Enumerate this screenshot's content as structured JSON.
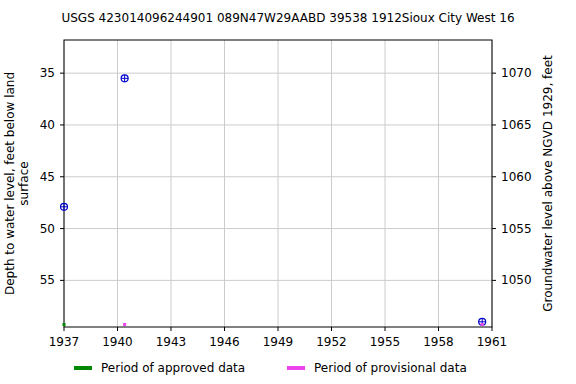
{
  "chart_data": {
    "type": "scatter",
    "title": "USGS 423014096244901 089N47W29AABD 39538 1912Sioux City West 16",
    "x_label": null,
    "y_label": "Depth to water level, feet below land surface",
    "y2_label": "Groundwater level above NGVD 1929, feet",
    "xlim": [
      1937,
      1961
    ],
    "xticks": [
      1937,
      1940,
      1943,
      1946,
      1949,
      1952,
      1955,
      1958,
      1961
    ],
    "ylim": [
      59.5,
      31.8
    ],
    "yticks": [
      35,
      40,
      45,
      50,
      55
    ],
    "y2lim": [
      1045.5,
      1073.2
    ],
    "y2ticks": [
      1050,
      1055,
      1060,
      1065,
      1070
    ],
    "grid": true,
    "legend": "bottom",
    "series": [
      {
        "type": "scatter",
        "color": "#0000cc",
        "marker": "circle",
        "x": [
          1937.0,
          1940.4,
          1960.45
        ],
        "values": [
          47.9,
          35.5,
          59.0
        ]
      },
      {
        "name": "Period of approved data",
        "type": "period",
        "color": "#008800",
        "x": [
          1937.0
        ]
      },
      {
        "name": "Period of provisional data",
        "type": "period",
        "color": "#ee44ee",
        "x": [
          1940.4,
          1960.45
        ]
      }
    ]
  }
}
